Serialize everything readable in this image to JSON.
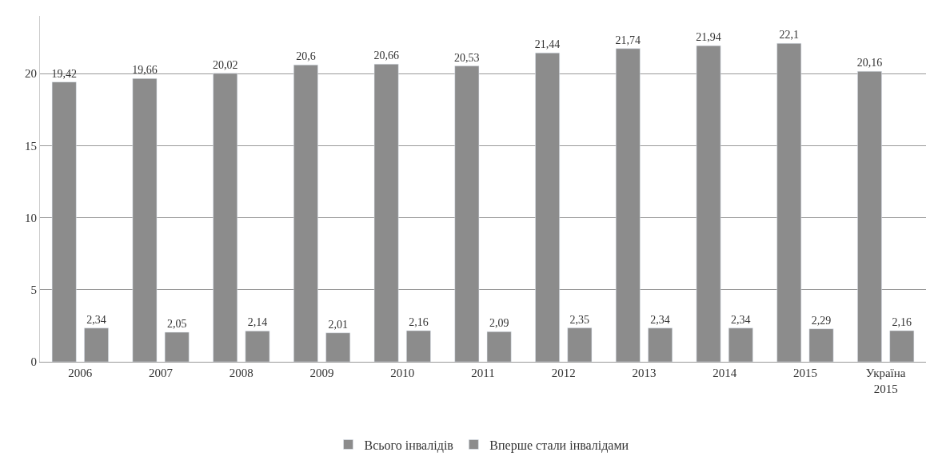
{
  "chart_data": {
    "type": "bar",
    "categories": [
      "2006",
      "2007",
      "2008",
      "2009",
      "2010",
      "2011",
      "2012",
      "2013",
      "2014",
      "2015",
      "Україна 2015"
    ],
    "series": [
      {
        "name": "Всього інвалідів",
        "color": "#8c8c8c",
        "values": [
          19.42,
          19.66,
          20.02,
          20.6,
          20.66,
          20.53,
          21.44,
          21.74,
          21.94,
          22.1,
          20.16
        ],
        "value_labels": [
          "19,42",
          "19,66",
          "20,02",
          "20,6",
          "20,66",
          "20,53",
          "21,44",
          "21,74",
          "21,94",
          "22,1",
          "20,16"
        ]
      },
      {
        "name": "Вперше стали інвалідами",
        "color": "#8c8c8c",
        "values": [
          2.34,
          2.05,
          2.14,
          2.01,
          2.16,
          2.09,
          2.35,
          2.34,
          2.34,
          2.29,
          2.16
        ],
        "value_labels": [
          "2,34",
          "2,05",
          "2,14",
          "2,01",
          "2,16",
          "2,09",
          "2,35",
          "2,34",
          "2,34",
          "2,29",
          "2,16"
        ]
      }
    ],
    "ylim": [
      0,
      24
    ],
    "yticks": [
      0,
      5,
      10,
      15,
      20
    ],
    "grid": "y",
    "legend": "bottom"
  }
}
